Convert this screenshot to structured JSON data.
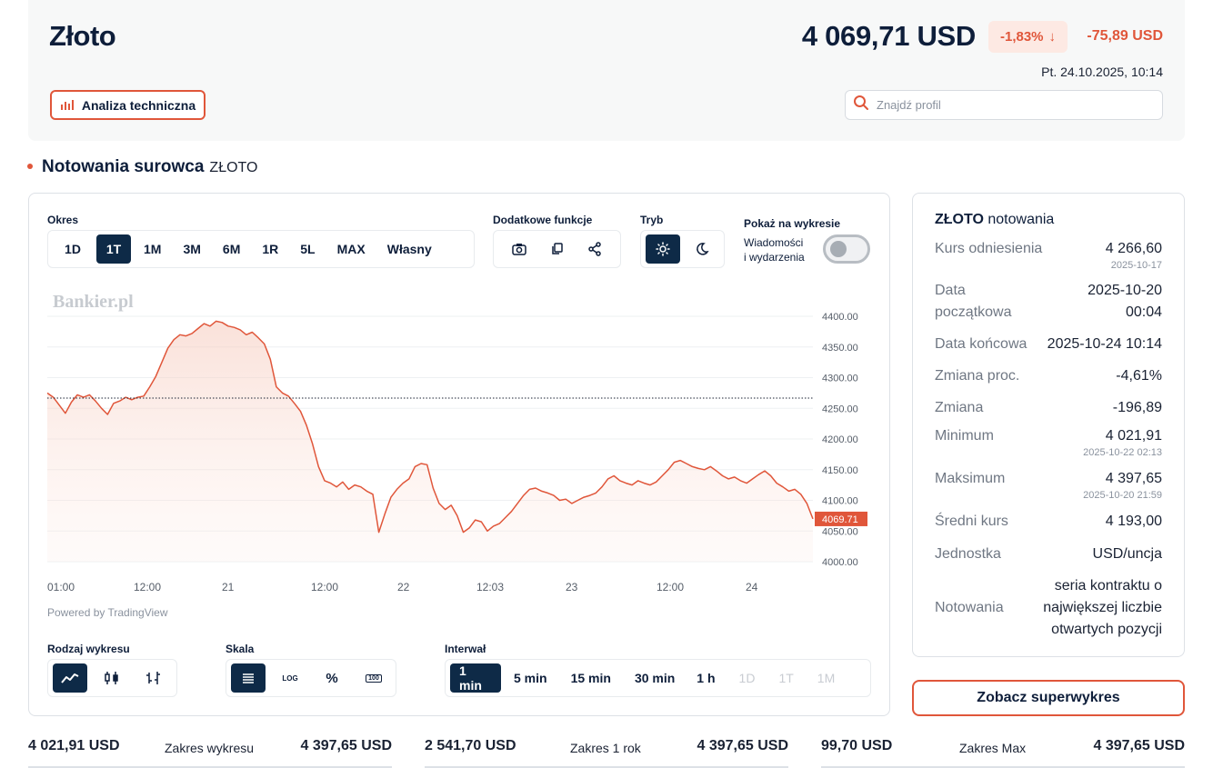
{
  "header": {
    "title": "Złoto",
    "price": "4 069,71 USD",
    "change_pct": "-1,83%",
    "change_arrow": "↓",
    "change_abs": "-75,89 USD",
    "timestamp": "Pt. 24.10.2025, 10:14",
    "ta_button": "Analiza techniczna",
    "search_placeholder": "Znajdź profil",
    "colors": {
      "accent": "#e0563a",
      "navy": "#0e2a47"
    }
  },
  "section": {
    "title": "Notowania surowca",
    "subtitle": "ZŁOTO"
  },
  "controls": {
    "period_label": "Okres",
    "periods": [
      "1D",
      "1T",
      "1M",
      "3M",
      "6M",
      "1R",
      "5L",
      "MAX",
      "Własny"
    ],
    "active_period": "1T",
    "extra_label": "Dodatkowe funkcje",
    "extra_icons": [
      "camera-icon",
      "copy-icon",
      "share-icon"
    ],
    "mode_label": "Tryb",
    "mode_icons": [
      "sun-icon",
      "moon-icon"
    ],
    "active_mode": "sun-icon",
    "show_label": "Pokaż na wykresie",
    "toggle_line1": "Wiadomości",
    "toggle_line2": "i wydarzenia",
    "toggle_on": false,
    "chart_type_label": "Rodzaj wykresu",
    "chart_type_icons": [
      "line-chart-icon",
      "candles-icon",
      "bars-icon"
    ],
    "scale_label": "Skala",
    "scale_options": [
      "≣",
      "LOG",
      "%",
      "100"
    ],
    "interval_label": "Interwał",
    "intervals": [
      "1 min",
      "5 min",
      "15 min",
      "30 min",
      "1 h",
      "1D",
      "1T",
      "1M"
    ],
    "active_interval": "1 min",
    "disabled_intervals": [
      "1D",
      "1T",
      "1M"
    ]
  },
  "chart": {
    "watermark": "Bankier.pl",
    "powered_by": "Powered by TradingView",
    "last_label": "4069.71"
  },
  "chart_data": {
    "type": "area",
    "ylim": [
      4000,
      4400
    ],
    "yticks": [
      "4400.00",
      "4350.00",
      "4300.00",
      "4250.00",
      "4200.00",
      "4150.00",
      "4100.00",
      "4050.00",
      "4000.00"
    ],
    "xticks": [
      "01:00",
      "12:00",
      "21",
      "12:00",
      "22",
      "12:03",
      "23",
      "12:00",
      "24"
    ],
    "reference_value": 4266.6,
    "last_value": 4069.71,
    "series": [
      {
        "values": [
          4275,
          4268,
          4255,
          4242,
          4260,
          4272,
          4268,
          4272,
          4262,
          4250,
          4240,
          4258,
          4262,
          4268,
          4264,
          4268,
          4270,
          4285,
          4302,
          4325,
          4348,
          4362,
          4370,
          4368,
          4372,
          4380,
          4388,
          4384,
          4392,
          4390,
          4384,
          4382,
          4378,
          4370,
          4374,
          4365,
          4355,
          4330,
          4285,
          4275,
          4270,
          4258,
          4245,
          4222,
          4192,
          4155,
          4132,
          4128,
          4122,
          4130,
          4118,
          4125,
          4122,
          4115,
          4110,
          4048,
          4078,
          4105,
          4118,
          4128,
          4135,
          4155,
          4160,
          4158,
          4120,
          4095,
          4085,
          4092,
          4075,
          4048,
          4055,
          4068,
          4065,
          4050,
          4058,
          4062,
          4072,
          4082,
          4095,
          4108,
          4118,
          4120,
          4115,
          4112,
          4108,
          4100,
          4102,
          4095,
          4100,
          4105,
          4108,
          4112,
          4122,
          4135,
          4140,
          4132,
          4128,
          4125,
          4132,
          4128,
          4125,
          4130,
          4140,
          4150,
          4162,
          4165,
          4160,
          4155,
          4152,
          4150,
          4155,
          4148,
          4140,
          4135,
          4138,
          4132,
          4128,
          4135,
          4142,
          4148,
          4140,
          4128,
          4122,
          4115,
          4118,
          4110,
          4095,
          4069.71
        ]
      }
    ],
    "grid": true
  },
  "info": {
    "title_bold": "ZŁOTO",
    "title_rest": "notowania",
    "rows": [
      {
        "key": "Kurs odniesienia",
        "val": "4 266,60",
        "sub": "2025-10-17"
      },
      {
        "key1": "Data",
        "key2": "początkowa",
        "val1": "2025-10-20",
        "val2": "00:04"
      },
      {
        "key": "Data końcowa",
        "val": "2025-10-24 10:14"
      },
      {
        "key": "Zmiana proc.",
        "val": "-4,61%"
      },
      {
        "key": "Zmiana",
        "val": "-196,89"
      },
      {
        "key": "Minimum",
        "val": "4 021,91",
        "sub": "2025-10-22 02:13"
      },
      {
        "key": "Maksimum",
        "val": "4 397,65",
        "sub": "2025-10-20 21:59"
      },
      {
        "key": "Średni kurs",
        "val": "4 193,00"
      },
      {
        "key": "Jednostka",
        "val": "USD/uncja"
      },
      {
        "key": "Notowania",
        "val1": "seria kontraktu o",
        "val2": "największej liczbie",
        "val3": "otwartych pozycji"
      }
    ]
  },
  "super_button": "Zobacz superwykres",
  "ranges": [
    {
      "low": "4 021,91 USD",
      "name": "Zakres wykresu",
      "high": "4 397,65 USD"
    },
    {
      "low": "2 541,70 USD",
      "name": "Zakres 1 rok",
      "high": "4 397,65 USD"
    },
    {
      "low": "99,70 USD",
      "name": "Zakres Max",
      "high": "4 397,65 USD"
    }
  ]
}
